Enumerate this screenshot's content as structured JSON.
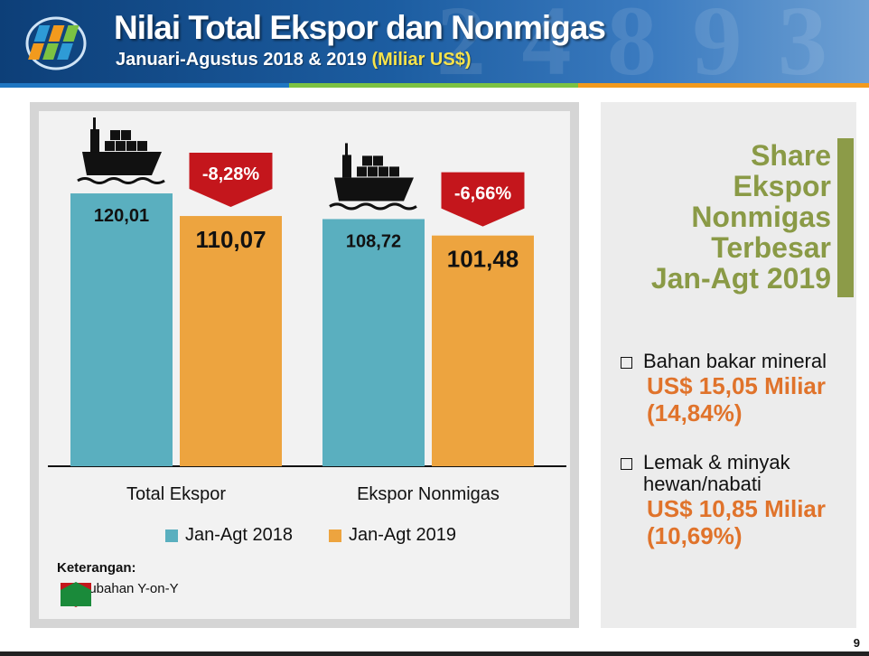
{
  "header": {
    "title": "Nilai Total Ekspor dan Nonmigas",
    "subtitle": "Januari-Agustus 2018 & 2019",
    "unit": "(Miliar US$)",
    "background_deco": "2 4 8 9 3"
  },
  "colors": {
    "series_2018": "#5aafbf",
    "series_2019": "#eda43f",
    "decrease": "#c4161c",
    "increase": "#1a8a3a",
    "accent_olive": "#8a9a46",
    "value_orange": "#e0732b"
  },
  "chart_data": {
    "type": "bar",
    "categories": [
      "Total Ekspor",
      "Ekspor Nonmigas"
    ],
    "series": [
      {
        "name": "Jan-Agt 2018",
        "values": [
          120.01,
          108.72
        ],
        "labels": [
          "120,01",
          "108,72"
        ]
      },
      {
        "name": "Jan-Agt 2019",
        "values": [
          110.07,
          101.48
        ],
        "labels": [
          "110,07",
          "101,48"
        ]
      }
    ],
    "changes": [
      "-8,28%",
      "-6,66%"
    ],
    "change_direction": [
      "down",
      "down"
    ],
    "icons": [
      "cargo-ship-icon",
      "cargo-ship-icon"
    ],
    "ylim": [
      0,
      155
    ],
    "title": "",
    "xlabel": "",
    "ylabel": "",
    "grid": false,
    "legend_position": "bottom"
  },
  "legend_note": {
    "title": "Keterangan:",
    "text": "Perubahan Y-on-Y"
  },
  "side": {
    "title_lines": [
      "Share",
      "Ekspor",
      "Nonmigas",
      "Terbesar",
      "Jan-Agt 2019"
    ],
    "items": [
      {
        "name": "Bahan bakar mineral",
        "value": "US$ 15,05 Miliar",
        "share": "(14,84%)"
      },
      {
        "name": "Lemak & minyak hewan/nabati",
        "value": "US$ 10,85 Miliar",
        "share": "(10,69%)"
      }
    ]
  },
  "page_number": "9"
}
